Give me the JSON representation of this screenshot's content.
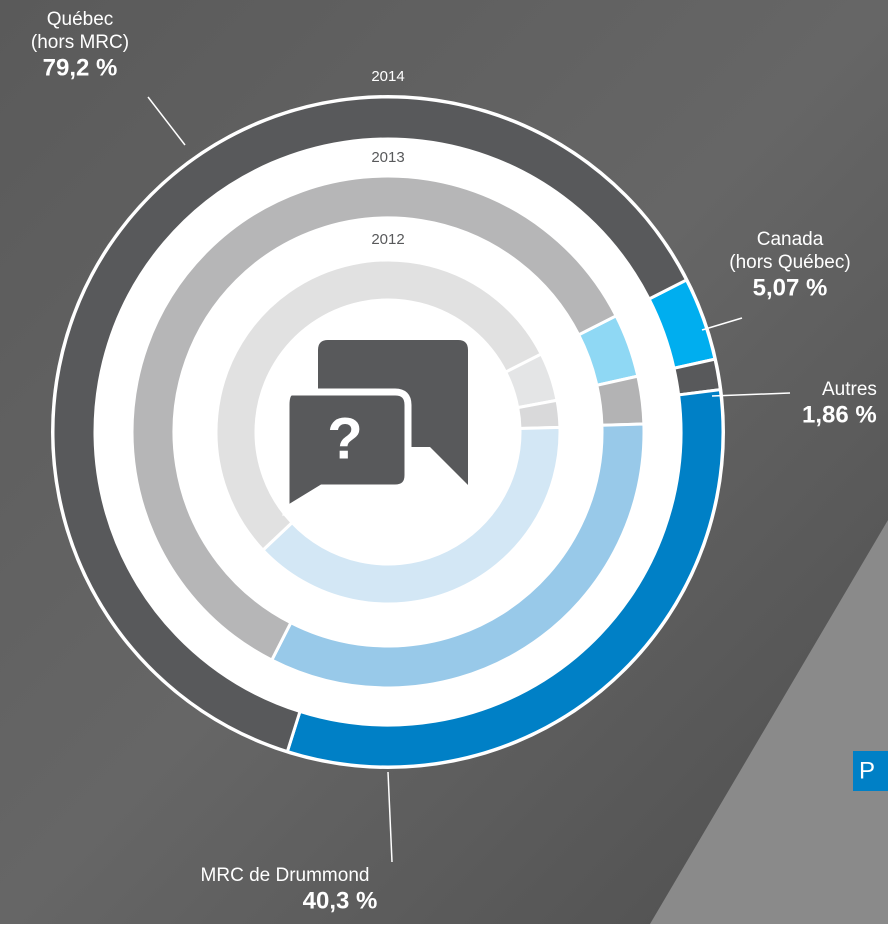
{
  "chart_data": {
    "type": "multi-donut",
    "categories": [
      "2012",
      "2013",
      "2014"
    ],
    "start_angle_series": "Canada",
    "series": [
      {
        "name": [
          "Canada",
          "(hors Québec)"
        ],
        "colors": [
          "#e4e5e6",
          "#8fd8f4",
          "#00aeef"
        ],
        "values": [
          4.5,
          4,
          5.07
        ],
        "value_labels": [
          null,
          null,
          "5,07 %"
        ]
      },
      {
        "name": [
          "Autres"
        ],
        "colors": [
          "#d9d9da",
          "#b3b3b4",
          "#58595b"
        ],
        "values": [
          2.5,
          3,
          1.86
        ],
        "value_labels": [
          null,
          null,
          "1,86 %"
        ]
      },
      {
        "name": [
          "MRC de Drummond"
        ],
        "colors": [
          "#d3e7f5",
          "#98c9e9",
          "#0080c6"
        ],
        "values": [
          38,
          33,
          40.3
        ],
        "value_labels": [
          null,
          null,
          "40,3 %"
        ]
      },
      {
        "name": [
          "Québec",
          "(hors MRC)"
        ],
        "colors": [
          "#e1e1e1",
          "#b6b6b7",
          "#58595b"
        ],
        "values": [
          54,
          60,
          79.2
        ],
        "value_labels": [
          null,
          null,
          "79,2 %"
        ]
      }
    ]
  },
  "fragment": {
    "text": "P"
  }
}
